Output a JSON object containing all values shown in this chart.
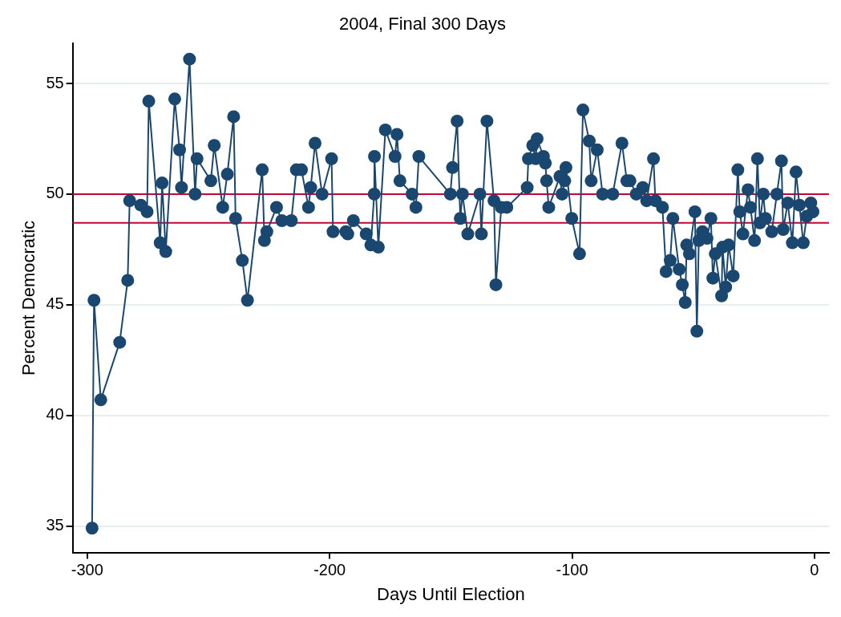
{
  "chart_data": {
    "type": "line",
    "title": "2004, Final 300 Days",
    "xlabel": "Days Until Election",
    "ylabel": "Percent Democratic",
    "x": [
      -298.0,
      -297.2,
      -294.4,
      -286.6,
      -283.3,
      -282.5,
      -277.9,
      -275.3,
      -274.6,
      -269.9,
      -269.1,
      -267.6,
      -263.9,
      -261.9,
      -261.1,
      -257.8,
      -255.5,
      -254.7,
      -249.0,
      -247.6,
      -244.1,
      -242.2,
      -239.6,
      -238.8,
      -236.0,
      -233.9,
      -227.8,
      -226.9,
      -225.9,
      -221.9,
      -219.7,
      -215.8,
      -213.7,
      -211.6,
      -208.7,
      -207.8,
      -206.0,
      -203.1,
      -199.2,
      -198.6,
      -193.3,
      -192.5,
      -190.2,
      -184.9,
      -183.0,
      -181.6,
      -181.5,
      -179.9,
      -177.0,
      -173.0,
      -172.2,
      -171.0,
      -166.0,
      -164.4,
      -163.2,
      -150.2,
      -149.3,
      -147.4,
      -146.1,
      -145.2,
      -143.0,
      -138.0,
      -137.4,
      -135.1,
      -132.2,
      -131.4,
      -129.2,
      -126.9,
      -118.5,
      -118.0,
      -116.2,
      -115.0,
      -114.4,
      -111.8,
      -111.0,
      -110.5,
      -109.6,
      -105.0,
      -104.1,
      -103.0,
      -102.5,
      -100.1,
      -96.9,
      -95.5,
      -92.9,
      -92.1,
      -89.6,
      -87.4,
      -83.2,
      -79.4,
      -77.4,
      -76.1,
      -73.5,
      -70.8,
      -69.2,
      -66.4,
      -65.6,
      -62.7,
      -61.2,
      -59.5,
      -58.4,
      -55.8,
      -54.5,
      -53.3,
      -52.7,
      -51.6,
      -49.3,
      -48.5,
      -47.7,
      -46.2,
      -44.3,
      -42.7,
      -41.9,
      -40.9,
      -38.3,
      -37.9,
      -36.6,
      -35.4,
      -33.5,
      -31.6,
      -30.8,
      -29.5,
      -27.4,
      -26.4,
      -24.7,
      -23.5,
      -22.5,
      -21.1,
      -20.2,
      -17.6,
      -15.5,
      -13.6,
      -12.9,
      -11.0,
      -9.1,
      -7.6,
      -6.2,
      -4.6,
      -3.2,
      -1.5,
      -0.6
    ],
    "series": [
      {
        "color": "#1a476f",
        "values": [
          34.9,
          45.2,
          40.7,
          43.3,
          46.1,
          49.7,
          49.5,
          49.2,
          54.2,
          47.8,
          50.5,
          47.4,
          54.3,
          52.0,
          50.3,
          56.1,
          50.0,
          51.6,
          50.6,
          52.2,
          49.4,
          50.9,
          53.5,
          48.9,
          47.0,
          45.2,
          51.1,
          47.9,
          48.3,
          49.4,
          48.8,
          48.8,
          51.1,
          51.1,
          49.4,
          50.3,
          52.3,
          50.0,
          51.6,
          48.3,
          48.3,
          48.2,
          48.8,
          48.2,
          47.7,
          50.0,
          51.7,
          47.6,
          52.9,
          51.7,
          52.7,
          50.6,
          50.0,
          49.4,
          51.7,
          50.0,
          51.2,
          53.3,
          48.9,
          50.0,
          48.2,
          50.0,
          48.2,
          53.3,
          49.7,
          45.9,
          49.4,
          49.4,
          50.3,
          51.6,
          52.2,
          51.6,
          52.5,
          51.7,
          51.4,
          50.6,
          49.4,
          50.8,
          50.0,
          50.6,
          51.2,
          48.9,
          47.3,
          53.8,
          52.4,
          50.6,
          52.0,
          50.0,
          50.0,
          52.3,
          50.6,
          50.6,
          50.0,
          50.3,
          49.7,
          51.6,
          49.7,
          49.4,
          46.5,
          47.0,
          48.9,
          46.6,
          45.9,
          45.1,
          47.7,
          47.3,
          49.2,
          43.8,
          47.9,
          48.3,
          48.0,
          48.9,
          46.2,
          47.3,
          45.4,
          47.6,
          45.8,
          47.7,
          46.3,
          51.1,
          49.2,
          48.2,
          50.2,
          49.4,
          47.9,
          51.6,
          48.7,
          50.0,
          48.9,
          48.3,
          50.0,
          51.5,
          48.4,
          49.6,
          47.8,
          51.0,
          49.5,
          47.8,
          49.0,
          49.6,
          49.2
        ]
      }
    ],
    "xlim": [
      -306,
      6
    ],
    "xticks": [
      -300,
      -200,
      -100,
      0
    ],
    "ylim": [
      33.8,
      56.8
    ],
    "yticks": [
      35,
      40,
      45,
      50,
      55
    ],
    "ref_lines": [
      {
        "axis": "y",
        "value": 50,
        "color": "#c10534"
      },
      {
        "axis": "y",
        "value": 48.7,
        "color": "#c10534"
      }
    ],
    "grid": "y",
    "legend": false,
    "marker": "circle",
    "line_style": "solid"
  }
}
